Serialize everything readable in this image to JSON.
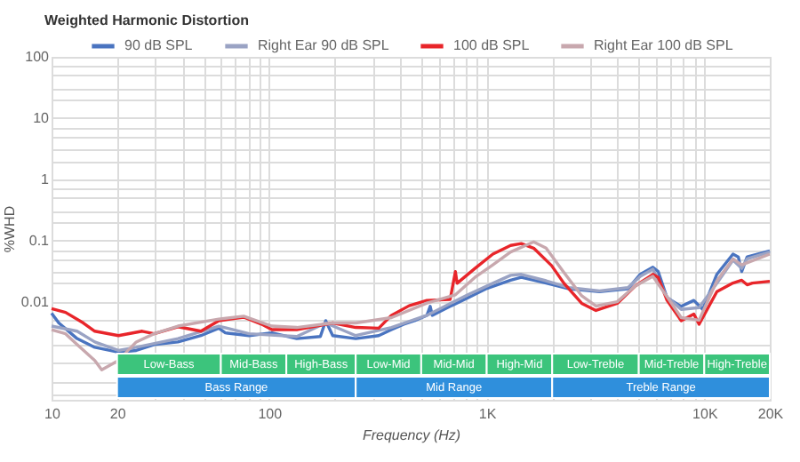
{
  "chart_data": {
    "type": "line",
    "title": "Weighted Harmonic Distortion",
    "xlabel": "Frequency (Hz)",
    "ylabel": "%WHD",
    "log": "xy",
    "grid": true,
    "legend": "top",
    "xlim": [
      10,
      20000
    ],
    "ylim": [
      0.00025,
      100
    ],
    "xticks": [
      10,
      {
        "value": 20,
        "label": "20"
      },
      {
        "value": 30,
        "label": null
      },
      {
        "value": 40,
        "label": null
      },
      {
        "value": 50,
        "label": null
      },
      {
        "value": 60,
        "label": null
      },
      {
        "value": 70,
        "label": null
      },
      {
        "value": 80,
        "label": null
      },
      {
        "value": 90,
        "label": null
      },
      100,
      {
        "value": 200,
        "label": null
      },
      {
        "value": 300,
        "label": null
      },
      {
        "value": 400,
        "label": null
      },
      {
        "value": 500,
        "label": null
      },
      {
        "value": 600,
        "label": null
      },
      {
        "value": 700,
        "label": null
      },
      {
        "value": 800,
        "label": null
      },
      {
        "value": 900,
        "label": null
      },
      {
        "value": 1000,
        "label": "1K"
      },
      {
        "value": 2000,
        "label": null
      },
      {
        "value": 3000,
        "label": null
      },
      {
        "value": 4000,
        "label": null
      },
      {
        "value": 5000,
        "label": null
      },
      {
        "value": 6000,
        "label": null
      },
      {
        "value": 7000,
        "label": null
      },
      {
        "value": 8000,
        "label": null
      },
      {
        "value": 9000,
        "label": null
      },
      {
        "value": 10000,
        "label": "10K"
      },
      {
        "value": 20000,
        "label": "20K"
      }
    ],
    "yticks": [
      {
        "value": 0.0003,
        "label": null
      },
      {
        "value": 0.0005,
        "label": null
      },
      {
        "value": 0.001,
        "label": null
      },
      {
        "value": 0.002,
        "label": null
      },
      {
        "value": 0.005,
        "label": null
      },
      0.01,
      {
        "value": 0.02,
        "label": null
      },
      {
        "value": 0.03,
        "label": null
      },
      {
        "value": 0.05,
        "label": null
      },
      {
        "value": 0.07,
        "label": null
      },
      0.1,
      {
        "value": 0.2,
        "label": null
      },
      {
        "value": 0.3,
        "label": null
      },
      {
        "value": 0.5,
        "label": null
      },
      {
        "value": 0.7,
        "label": null
      },
      1,
      {
        "value": 2,
        "label": null
      },
      {
        "value": 3,
        "label": null
      },
      {
        "value": 5,
        "label": null
      },
      {
        "value": 7,
        "label": null
      },
      10,
      {
        "value": 20,
        "label": null
      },
      {
        "value": 30,
        "label": null
      },
      {
        "value": 50,
        "label": null
      },
      {
        "value": 70,
        "label": null
      },
      100
    ],
    "bands": [
      {
        "axis": "x",
        "from": 20,
        "to": 60,
        "label": "Low-Bass",
        "color": "#3cc47c"
      },
      {
        "axis": "x",
        "from": 60,
        "to": 120,
        "label": "Mid-Bass",
        "color": "#3cc47c"
      },
      {
        "axis": "x",
        "from": 120,
        "to": 250,
        "label": "High-Bass",
        "color": "#3cc47c"
      },
      {
        "axis": "x",
        "from": 250,
        "to": 500,
        "label": "Low-Mid",
        "color": "#3cc47c"
      },
      {
        "axis": "x",
        "from": 500,
        "to": 1000,
        "label": "Mid-Mid",
        "color": "#3cc47c"
      },
      {
        "axis": "x",
        "from": 1000,
        "to": 2000,
        "label": "High-Mid",
        "color": "#3cc47c"
      },
      {
        "axis": "x",
        "from": 2000,
        "to": 5000,
        "label": "Low-Treble",
        "color": "#3cc47c"
      },
      {
        "axis": "x",
        "from": 5000,
        "to": 10000,
        "label": "Mid-Treble",
        "color": "#3cc47c"
      },
      {
        "axis": "x",
        "from": 10000,
        "to": 20000,
        "label": "High-Treble",
        "color": "#3cc47c"
      },
      {
        "axis": "x",
        "from": 20,
        "to": 250,
        "label": "Bass Range",
        "color": "#2f8fdc"
      },
      {
        "axis": "x",
        "from": 250,
        "to": 2000,
        "label": "Mid Range",
        "color": "#2f8fdc"
      },
      {
        "axis": "x",
        "from": 2000,
        "to": 20000,
        "label": "Treble Range",
        "color": "#2f8fdc"
      }
    ],
    "series": [
      {
        "name": "90 dB SPL",
        "color": "#4a74c0",
        "x": [
          10,
          10.8,
          13.1,
          15.8,
          20.3,
          24.5,
          29.6,
          38.1,
          48.6,
          58.7,
          62.9,
          80.9,
          103,
          134,
          172,
          182,
          196,
          250,
          319,
          365,
          416,
          466,
          531,
          550,
          562,
          679,
          819,
          989,
          1288,
          1442,
          1875,
          2393,
          3298,
          4457,
          5083,
          5804,
          6138,
          6745,
          7834,
          8954,
          9840,
          11430,
          13550,
          14330,
          14860,
          15740,
          20000
        ],
        "values": [
          0.0065,
          0.0045,
          0.0025,
          0.0018,
          0.0015,
          0.0016,
          0.002,
          0.0022,
          0.0028,
          0.0037,
          0.0031,
          0.0028,
          0.0031,
          0.0025,
          0.0027,
          0.0049,
          0.0028,
          0.0025,
          0.0028,
          0.0035,
          0.0043,
          0.0049,
          0.006,
          0.0084,
          0.006,
          0.0084,
          0.0116,
          0.0162,
          0.0224,
          0.0251,
          0.0202,
          0.0162,
          0.0146,
          0.0162,
          0.0281,
          0.0366,
          0.0312,
          0.0116,
          0.0084,
          0.0105,
          0.0075,
          0.0281,
          0.06,
          0.054,
          0.0312,
          0.054,
          0.0675
        ]
      },
      {
        "name": "Right Ear 90 dB SPL",
        "color": "#9aa3c4",
        "x": [
          10,
          13.1,
          15.8,
          20.3,
          24.5,
          38.1,
          58.7,
          80.9,
          134,
          182,
          250,
          365,
          531,
          819,
          1067,
          1288,
          1442,
          1875,
          2393,
          3298,
          4457,
          5083,
          5804,
          6745,
          7834,
          9465,
          11430,
          13550,
          14860,
          15740,
          20000
        ],
        "values": [
          0.004,
          0.0033,
          0.0022,
          0.0016,
          0.0018,
          0.0025,
          0.004,
          0.003,
          0.0027,
          0.0045,
          0.0028,
          0.0038,
          0.006,
          0.013,
          0.02,
          0.027,
          0.028,
          0.022,
          0.017,
          0.015,
          0.017,
          0.026,
          0.034,
          0.012,
          0.0075,
          0.008,
          0.02,
          0.048,
          0.035,
          0.05,
          0.065
        ]
      },
      {
        "name": "100 dB SPL",
        "color": "#e8252a",
        "x": [
          10,
          11.6,
          14,
          15.8,
          20.3,
          26.1,
          29.6,
          38.1,
          48.6,
          58.7,
          76.4,
          92.2,
          103,
          134,
          196,
          250,
          319,
          365,
          440,
          531,
          679,
          718,
          731,
          883,
          1067,
          1288,
          1442,
          1644,
          1986,
          2265,
          2733,
          3177,
          3981,
          4808,
          5804,
          6138,
          6745,
          7834,
          8954,
          9465,
          11430,
          13550,
          14860,
          15740,
          16640,
          20000
        ],
        "values": [
          0.0077,
          0.0067,
          0.0045,
          0.0033,
          0.0028,
          0.0033,
          0.003,
          0.0039,
          0.0033,
          0.0049,
          0.0056,
          0.0043,
          0.0035,
          0.0035,
          0.0045,
          0.0038,
          0.0037,
          0.006,
          0.0086,
          0.0105,
          0.0109,
          0.031,
          0.02,
          0.035,
          0.06,
          0.083,
          0.089,
          0.075,
          0.039,
          0.02,
          0.0094,
          0.0072,
          0.0094,
          0.018,
          0.028,
          0.025,
          0.0105,
          0.0049,
          0.0063,
          0.0043,
          0.0146,
          0.0202,
          0.0224,
          0.0189,
          0.0202,
          0.0216
        ]
      },
      {
        "name": "Right Ear 100 dB SPL",
        "color": "#c8a8ae",
        "x": [
          10,
          11.6,
          13.1,
          15.8,
          17,
          20.3,
          24.5,
          29.6,
          38.1,
          58.7,
          76.4,
          103,
          134,
          196,
          250,
          365,
          531,
          718,
          883,
          1067,
          1288,
          1644,
          1875,
          2265,
          2733,
          3177,
          3981,
          4808,
          5804,
          6745,
          7834,
          9465,
          11430,
          13550,
          14860,
          20000
        ],
        "values": [
          0.0035,
          0.003,
          0.002,
          0.0011,
          0.00077,
          0.0011,
          0.0022,
          0.003,
          0.004,
          0.0052,
          0.0058,
          0.004,
          0.0038,
          0.0045,
          0.0045,
          0.0055,
          0.0095,
          0.013,
          0.025,
          0.04,
          0.065,
          0.095,
          0.075,
          0.03,
          0.0125,
          0.0085,
          0.01,
          0.018,
          0.026,
          0.012,
          0.0055,
          0.005,
          0.022,
          0.05,
          0.04,
          0.06
        ]
      }
    ]
  }
}
